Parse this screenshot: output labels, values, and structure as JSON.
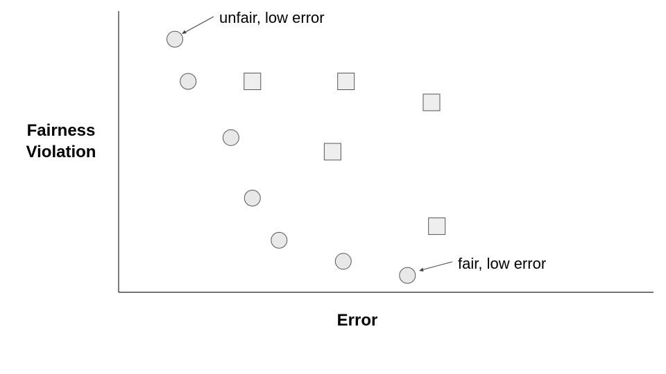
{
  "chart_data": {
    "type": "scatter",
    "xlabel": "Error",
    "ylabel": [
      "Fairness",
      "Violation"
    ],
    "xlim": [
      0,
      10
    ],
    "ylim": [
      0,
      10
    ],
    "grid": false,
    "series": [
      {
        "marker": "circle",
        "color": "#e8e8e8",
        "points": [
          {
            "x": 1.05,
            "y": 9.0
          },
          {
            "x": 1.3,
            "y": 7.5
          },
          {
            "x": 2.1,
            "y": 5.5
          },
          {
            "x": 2.5,
            "y": 3.35
          },
          {
            "x": 3.0,
            "y": 1.85
          },
          {
            "x": 4.2,
            "y": 1.1
          },
          {
            "x": 5.4,
            "y": 0.6
          }
        ]
      },
      {
        "marker": "square",
        "color": "#eeeeee",
        "points": [
          {
            "x": 2.5,
            "y": 7.5
          },
          {
            "x": 4.25,
            "y": 7.5
          },
          {
            "x": 5.85,
            "y": 6.75
          },
          {
            "x": 4.0,
            "y": 5.0
          },
          {
            "x": 5.95,
            "y": 2.35
          }
        ]
      }
    ],
    "annotations": [
      {
        "text": "unfair, low error",
        "x": 1.05,
        "y": 9.0
      },
      {
        "text": "fair, low error",
        "x": 5.4,
        "y": 0.6
      }
    ]
  }
}
